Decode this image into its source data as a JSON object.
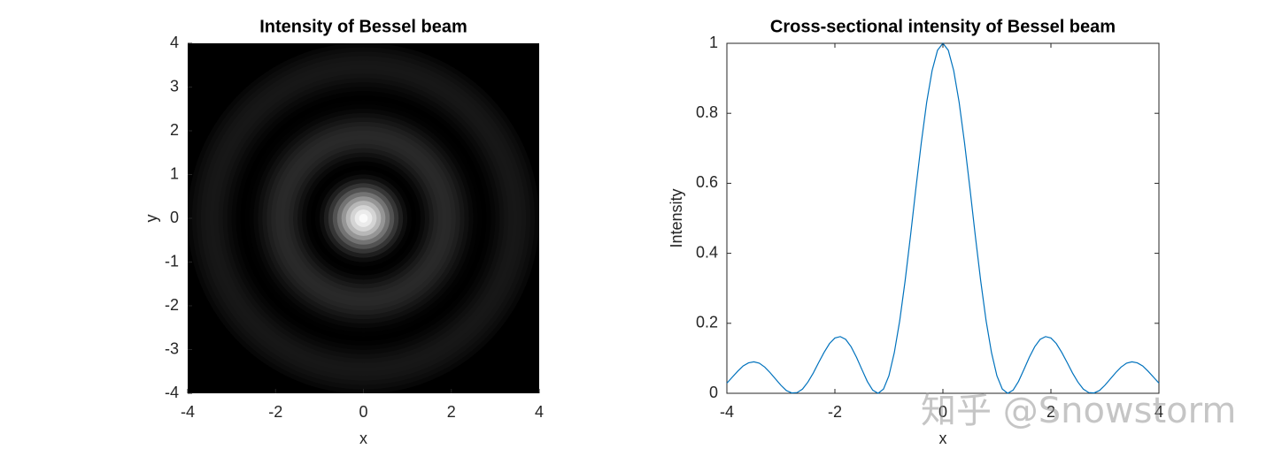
{
  "chart_data": [
    {
      "type": "heatmap",
      "title": "Intensity of Bessel beam",
      "xlabel": "x",
      "ylabel": "y",
      "r": [
        0,
        0.1,
        0.2,
        0.3,
        0.4,
        0.5,
        0.6,
        0.7,
        0.8,
        0.9,
        1,
        1.1,
        1.2,
        1.3,
        1.4,
        1.5,
        1.6,
        1.7,
        1.8,
        1.9,
        2,
        2.1,
        2.2,
        2.3,
        2.4,
        2.5,
        2.6,
        2.7,
        2.8,
        2.9,
        3,
        3.1,
        3.2,
        3.3,
        3.4,
        3.5,
        3.6,
        3.7,
        3.8,
        3.9,
        4
      ],
      "values": [
        1,
        0.98,
        0.922,
        0.832,
        0.716,
        0.586,
        0.45,
        0.321,
        0.207,
        0.116,
        0.05,
        0.012,
        0,
        0.009,
        0.034,
        0.068,
        0.103,
        0.133,
        0.154,
        0.162,
        0.158,
        0.142,
        0.117,
        0.088,
        0.058,
        0.032,
        0.012,
        0.002,
        0.001,
        0.008,
        0.023,
        0.041,
        0.059,
        0.075,
        0.086,
        0.09,
        0.087,
        0.078,
        0.063,
        0.046,
        0.029
      ],
      "colormap": "gray",
      "clim": [
        0,
        1
      ],
      "xlim": [
        -4,
        4
      ],
      "ylim": [
        -4,
        4
      ],
      "xticks": [
        -4,
        -2,
        0,
        2,
        4
      ],
      "yticks": [
        -4,
        -3,
        -2,
        -1,
        0,
        1,
        2,
        3,
        4
      ]
    },
    {
      "type": "line",
      "title": "Cross-sectional intensity of Bessel beam",
      "xlabel": "x",
      "ylabel": "Intensity",
      "x": [
        -4,
        -3.9,
        -3.8,
        -3.7,
        -3.6,
        -3.5,
        -3.4,
        -3.3,
        -3.2,
        -3.1,
        -3,
        -2.9,
        -2.8,
        -2.7,
        -2.6,
        -2.5,
        -2.4,
        -2.3,
        -2.2,
        -2.1,
        -2,
        -1.9,
        -1.8,
        -1.7,
        -1.6,
        -1.5,
        -1.4,
        -1.3,
        -1.2,
        -1.1,
        -1,
        -0.9,
        -0.8,
        -0.7,
        -0.6,
        -0.5,
        -0.4,
        -0.3,
        -0.2,
        -0.1,
        0,
        0.1,
        0.2,
        0.3,
        0.4,
        0.5,
        0.6,
        0.7,
        0.8,
        0.9,
        1,
        1.1,
        1.2,
        1.3,
        1.4,
        1.5,
        1.6,
        1.7,
        1.8,
        1.9,
        2,
        2.1,
        2.2,
        2.3,
        2.4,
        2.5,
        2.6,
        2.7,
        2.8,
        2.9,
        3,
        3.1,
        3.2,
        3.3,
        3.4,
        3.5,
        3.6,
        3.7,
        3.8,
        3.9,
        4
      ],
      "values": [
        0.029,
        0.046,
        0.063,
        0.078,
        0.087,
        0.09,
        0.086,
        0.075,
        0.059,
        0.041,
        0.023,
        0.008,
        0.001,
        0.002,
        0.012,
        0.032,
        0.058,
        0.088,
        0.117,
        0.142,
        0.158,
        0.162,
        0.154,
        0.133,
        0.103,
        0.068,
        0.034,
        0.009,
        0,
        0.012,
        0.05,
        0.116,
        0.207,
        0.321,
        0.45,
        0.586,
        0.716,
        0.832,
        0.922,
        0.98,
        1,
        0.98,
        0.922,
        0.832,
        0.716,
        0.586,
        0.45,
        0.321,
        0.207,
        0.116,
        0.05,
        0.012,
        0,
        0.009,
        0.034,
        0.068,
        0.103,
        0.133,
        0.154,
        0.162,
        0.158,
        0.142,
        0.117,
        0.088,
        0.058,
        0.032,
        0.012,
        0.002,
        0.001,
        0.008,
        0.023,
        0.041,
        0.059,
        0.075,
        0.086,
        0.09,
        0.087,
        0.078,
        0.063,
        0.046,
        0.029
      ],
      "color": "#0072bd",
      "xlim": [
        -4,
        4
      ],
      "ylim": [
        0,
        1
      ],
      "xticks": [
        -4,
        -2,
        0,
        2,
        4
      ],
      "yticks": [
        0,
        0.2,
        0.4,
        0.6,
        0.8,
        1
      ]
    }
  ],
  "watermark": "知乎 @Snowstorm"
}
